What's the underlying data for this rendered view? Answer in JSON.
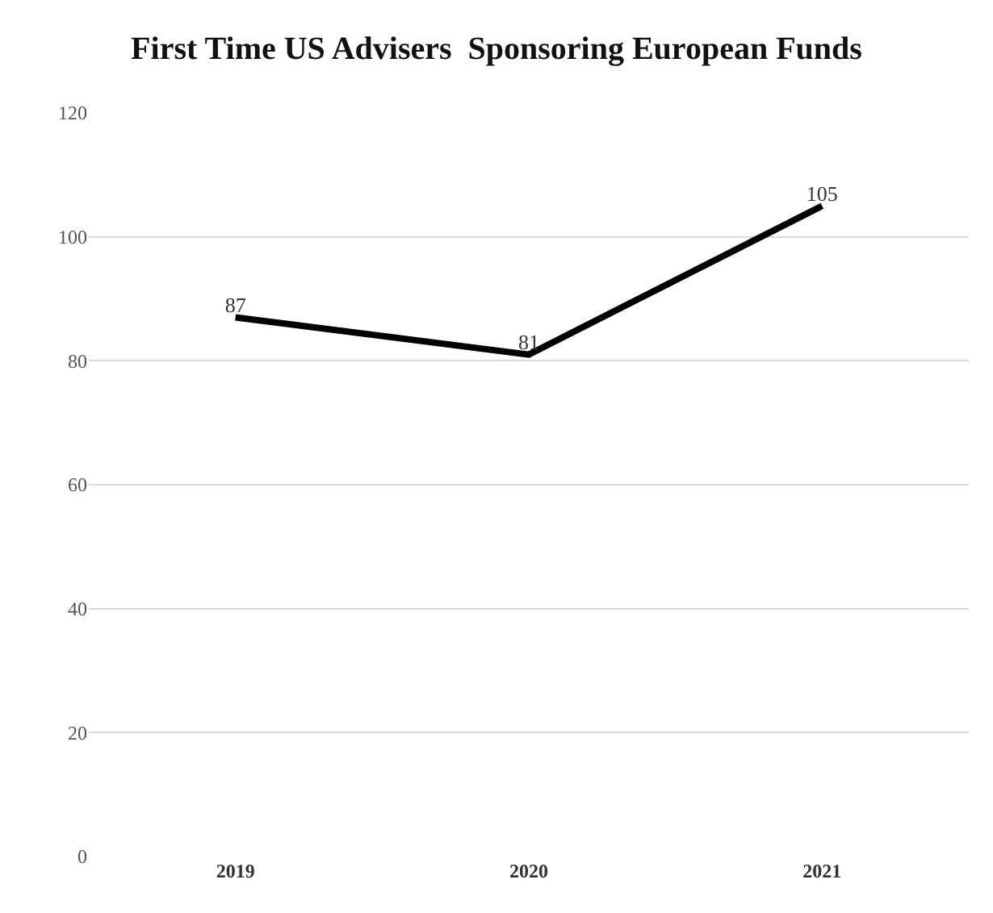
{
  "chart_data": {
    "type": "line",
    "title": "First Time US Advisers  Sponsoring European Funds",
    "categories": [
      "2019",
      "2020",
      "2021"
    ],
    "series": [
      {
        "color": "#000000",
        "values": [
          87,
          81,
          105
        ]
      }
    ],
    "ylim": [
      0,
      120
    ],
    "yticks": [
      0,
      20,
      40,
      60,
      80,
      100,
      120
    ],
    "grid": "y",
    "marker": "none",
    "line_style": "solid",
    "data_labels": true
  }
}
